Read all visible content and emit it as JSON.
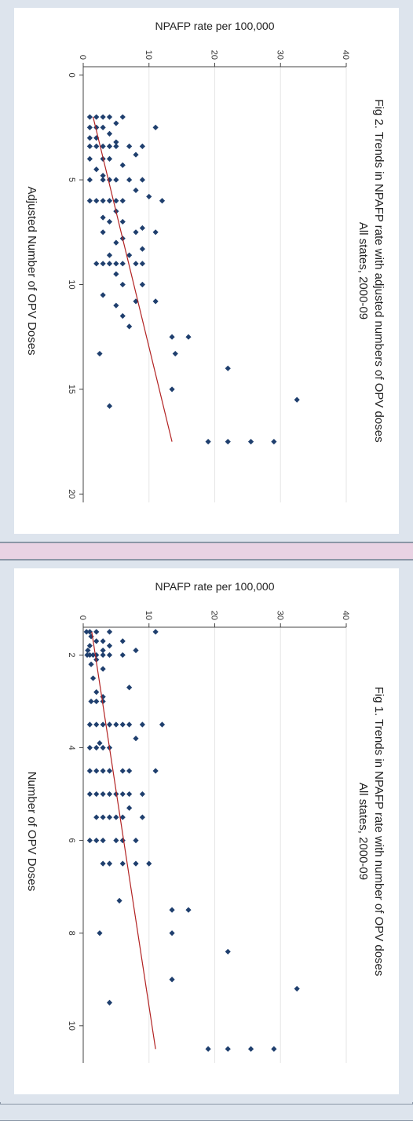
{
  "chart_data": [
    {
      "type": "scatter",
      "title": "Fig 1. Trends in NPAFP rate with number of OPV doses",
      "subtitle": "All states, 2000-09",
      "xlabel": "Number of OPV Doses",
      "ylabel": "NPAFP rate per 100,000",
      "xlim": [
        1.4,
        10.8
      ],
      "ylim": [
        0,
        40
      ],
      "xticks": [
        "2",
        "4",
        "6",
        "8",
        "10"
      ],
      "yticks": [
        "0",
        "10",
        "20",
        "30",
        "40"
      ],
      "grid": true,
      "fit_line": {
        "x": [
          1.5,
          10.5
        ],
        "y": [
          1.3,
          11.0
        ],
        "color": "#b22222"
      },
      "point_color": "#1f3f6e",
      "points": [
        [
          1.5,
          11
        ],
        [
          1.5,
          4
        ],
        [
          1.5,
          1
        ],
        [
          1.5,
          2
        ],
        [
          1.5,
          0.5
        ],
        [
          1.6,
          1.2
        ],
        [
          1.7,
          6
        ],
        [
          1.7,
          3
        ],
        [
          1.7,
          2
        ],
        [
          1.8,
          4
        ],
        [
          1.8,
          1
        ],
        [
          1.9,
          8
        ],
        [
          1.9,
          3
        ],
        [
          1.9,
          0.7
        ],
        [
          2,
          6
        ],
        [
          2,
          4
        ],
        [
          2,
          3
        ],
        [
          2,
          2
        ],
        [
          2,
          1.5
        ],
        [
          2,
          1
        ],
        [
          2,
          0.6
        ],
        [
          2.1,
          2
        ],
        [
          2.2,
          1.2
        ],
        [
          2.3,
          3
        ],
        [
          2.5,
          1.5
        ],
        [
          2.7,
          7
        ],
        [
          2.8,
          2
        ],
        [
          2.9,
          3
        ],
        [
          3,
          2
        ],
        [
          3,
          3
        ],
        [
          3,
          1.2
        ],
        [
          3.5,
          12
        ],
        [
          3.5,
          9
        ],
        [
          3.5,
          7
        ],
        [
          3.5,
          6
        ],
        [
          3.5,
          5
        ],
        [
          3.5,
          4
        ],
        [
          3.5,
          3
        ],
        [
          3.5,
          2
        ],
        [
          3.5,
          1
        ],
        [
          3.8,
          8
        ],
        [
          3.9,
          2.5
        ],
        [
          4,
          4
        ],
        [
          4,
          3
        ],
        [
          4,
          2
        ],
        [
          4,
          1
        ],
        [
          4.5,
          11
        ],
        [
          4.5,
          7
        ],
        [
          4.5,
          6
        ],
        [
          4.5,
          4
        ],
        [
          4.5,
          3
        ],
        [
          4.5,
          2
        ],
        [
          4.5,
          1
        ],
        [
          5,
          9
        ],
        [
          5,
          7
        ],
        [
          5,
          6
        ],
        [
          5,
          5
        ],
        [
          5,
          4
        ],
        [
          5,
          3
        ],
        [
          5,
          2
        ],
        [
          5,
          1
        ],
        [
          5.3,
          7
        ],
        [
          5.5,
          9
        ],
        [
          5.5,
          6
        ],
        [
          5.5,
          5
        ],
        [
          5.5,
          4
        ],
        [
          5.5,
          3
        ],
        [
          5.5,
          2
        ],
        [
          6,
          8
        ],
        [
          6,
          6
        ],
        [
          6,
          5
        ],
        [
          6,
          3
        ],
        [
          6,
          2
        ],
        [
          6,
          1
        ],
        [
          6.5,
          10
        ],
        [
          6.5,
          8
        ],
        [
          6.5,
          6
        ],
        [
          6.5,
          4
        ],
        [
          6.5,
          3
        ],
        [
          7.3,
          5.5
        ],
        [
          7.5,
          16
        ],
        [
          7.5,
          13.5
        ],
        [
          8,
          13.5
        ],
        [
          8,
          2.5
        ],
        [
          8.4,
          22
        ],
        [
          9,
          13.5
        ],
        [
          9.2,
          32.5
        ],
        [
          9.5,
          4
        ],
        [
          10.5,
          29
        ],
        [
          10.5,
          25.5
        ],
        [
          10.5,
          22
        ],
        [
          10.5,
          19
        ]
      ]
    },
    {
      "type": "scatter",
      "title": "Fig 2. Trends in NPAFP rate with adjusted numbers of OPV doses",
      "subtitle": "All states, 2000-09",
      "xlabel": "Adjusted Number of OPV Doses",
      "ylabel": "NPAFP rate per 100,000",
      "xlim": [
        -0.4,
        20.4
      ],
      "ylim": [
        0,
        40
      ],
      "xticks": [
        "0",
        "5",
        "10",
        "15",
        "20"
      ],
      "yticks": [
        "0",
        "10",
        "20",
        "30",
        "40"
      ],
      "grid": true,
      "fit_line": {
        "x": [
          2,
          17.5
        ],
        "y": [
          1.5,
          13.5
        ],
        "color": "#b22222"
      },
      "point_color": "#1f3f6e",
      "points": [
        [
          2,
          6
        ],
        [
          2,
          4
        ],
        [
          2,
          3
        ],
        [
          2,
          2
        ],
        [
          2,
          1
        ],
        [
          2.3,
          5
        ],
        [
          2.5,
          11
        ],
        [
          2.5,
          3
        ],
        [
          2.5,
          2
        ],
        [
          2.5,
          1
        ],
        [
          2.8,
          4
        ],
        [
          3,
          2
        ],
        [
          3,
          1
        ],
        [
          3.2,
          5
        ],
        [
          3.4,
          9
        ],
        [
          3.4,
          7
        ],
        [
          3.4,
          5
        ],
        [
          3.4,
          4
        ],
        [
          3.4,
          3
        ],
        [
          3.4,
          2
        ],
        [
          3.4,
          1
        ],
        [
          3.8,
          8
        ],
        [
          4,
          4
        ],
        [
          4,
          3
        ],
        [
          4,
          1
        ],
        [
          4.3,
          6
        ],
        [
          4.5,
          2
        ],
        [
          4.8,
          3
        ],
        [
          5,
          9
        ],
        [
          5,
          7
        ],
        [
          5,
          5
        ],
        [
          5,
          4
        ],
        [
          5,
          3
        ],
        [
          5,
          1
        ],
        [
          5.5,
          8
        ],
        [
          5.8,
          10
        ],
        [
          6,
          12
        ],
        [
          6,
          6
        ],
        [
          6,
          5
        ],
        [
          6,
          4
        ],
        [
          6,
          3
        ],
        [
          6,
          2
        ],
        [
          6,
          1
        ],
        [
          6.5,
          5
        ],
        [
          6.8,
          3
        ],
        [
          7,
          6
        ],
        [
          7,
          4
        ],
        [
          7.3,
          9
        ],
        [
          7.5,
          11
        ],
        [
          7.5,
          8
        ],
        [
          7.5,
          3
        ],
        [
          7.8,
          6
        ],
        [
          8,
          5
        ],
        [
          8.3,
          9
        ],
        [
          8.6,
          7
        ],
        [
          8.6,
          4
        ],
        [
          9,
          9
        ],
        [
          9,
          8
        ],
        [
          9,
          6
        ],
        [
          9,
          5
        ],
        [
          9,
          4
        ],
        [
          9,
          3
        ],
        [
          9,
          2
        ],
        [
          9.5,
          5
        ],
        [
          10,
          9
        ],
        [
          10,
          6
        ],
        [
          10.5,
          3
        ],
        [
          10.8,
          11
        ],
        [
          10.8,
          8
        ],
        [
          11,
          5
        ],
        [
          11.5,
          6
        ],
        [
          12,
          7
        ],
        [
          12.5,
          16
        ],
        [
          12.5,
          13.5
        ],
        [
          13.3,
          14
        ],
        [
          13.3,
          2.5
        ],
        [
          14,
          22
        ],
        [
          15,
          13.5
        ],
        [
          15.5,
          32.5
        ],
        [
          15.8,
          4
        ],
        [
          17.5,
          29
        ],
        [
          17.5,
          25.5
        ],
        [
          17.5,
          22
        ],
        [
          17.5,
          19
        ]
      ]
    }
  ]
}
